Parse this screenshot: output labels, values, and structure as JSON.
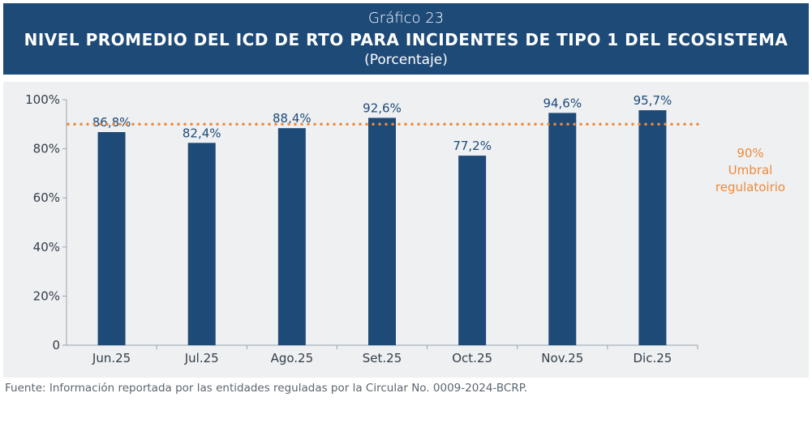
{
  "header": {
    "kicker": "Gráfico 23",
    "title": "NIVEL PROMEDIO DEL ICD DE RTO PARA INCIDENTES DE TIPO 1 DEL ECOSISTEMA",
    "subtitle": "(Porcentaje)"
  },
  "colors": {
    "header_bg": "#1e4a78",
    "bar": "#1e4a78",
    "threshold": "#ee8a3a",
    "panel_bg": "#eef0f2",
    "axis": "#9aa4ad",
    "label": "#1e4a78"
  },
  "chart_data": {
    "type": "bar",
    "categories": [
      "Jun.25",
      "Jul.25",
      "Ago.25",
      "Set.25",
      "Oct.25",
      "Nov.25",
      "Dic.25"
    ],
    "values": [
      86.8,
      82.4,
      88.4,
      92.6,
      77.2,
      94.6,
      95.7
    ],
    "data_labels": [
      "86,8%",
      "82,4%",
      "88,4%",
      "92,6%",
      "77,2%",
      "94,6%",
      "95,7%"
    ],
    "ylim": [
      0,
      100
    ],
    "y_ticks": [
      0,
      20,
      40,
      60,
      80,
      100
    ],
    "y_tick_labels": [
      "0",
      "20%",
      "40%",
      "60%",
      "80%",
      "100%"
    ],
    "grid": false,
    "legend": "none",
    "threshold": {
      "value": 90,
      "label_lines": [
        "90%",
        "Umbral",
        "regulatoirio"
      ],
      "style": "dotted"
    }
  },
  "footer": {
    "source": "Fuente: Información reportada por las entidades reguladas por la Circular No. 0009-2024-BCRP."
  }
}
